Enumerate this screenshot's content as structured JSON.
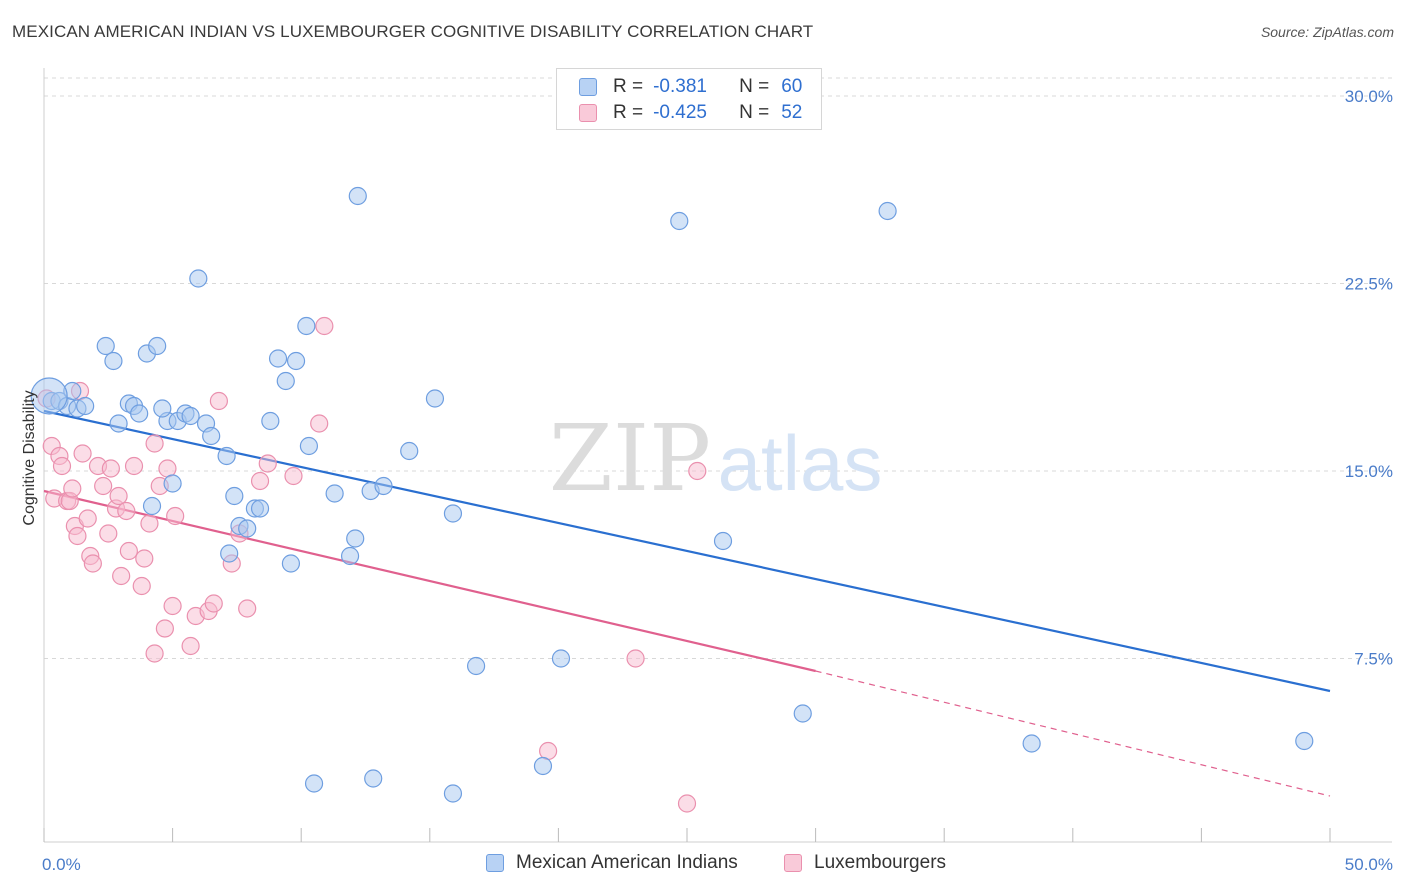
{
  "title": "MEXICAN AMERICAN INDIAN VS LUXEMBOURGER COGNITIVE DISABILITY CORRELATION CHART",
  "source": "Source: ZipAtlas.com",
  "watermark": {
    "zip": "ZIP",
    "atlas": "atlas"
  },
  "legend": {
    "blue": {
      "r_label": "R =",
      "r_value": "-0.381",
      "n_label": "N =",
      "n_value": "60"
    },
    "pink": {
      "r_label": "R =",
      "r_value": "-0.425",
      "n_label": "N =",
      "n_value": "52"
    }
  },
  "bottom_legend": {
    "blue": "Mexican American Indians",
    "pink": "Luxembourgers"
  },
  "colors": {
    "blue_fill": "#a8c8f0",
    "blue_stroke": "#6e9ee0",
    "blue_line": "#2a6fd0",
    "pink_fill": "#f7bcd0",
    "pink_stroke": "#ea90ae",
    "pink_line": "#e0608e",
    "grid": "#d8d8d8",
    "tick_text": "#4a7cc9"
  },
  "chart_data": {
    "type": "scatter",
    "title": "MEXICAN AMERICAN INDIAN VS LUXEMBOURGER COGNITIVE DISABILITY CORRELATION CHART",
    "xlabel": "",
    "ylabel": "Cognitive Disability",
    "xlim": [
      0,
      50
    ],
    "ylim": [
      0,
      30.5
    ],
    "x_tick_labels": [
      "0.0%",
      "50.0%"
    ],
    "y_ticks": [
      7.5,
      15.0,
      22.5,
      30.0
    ],
    "y_tick_labels": [
      "7.5%",
      "15.0%",
      "22.5%",
      "30.0%"
    ],
    "grid": true,
    "series": [
      {
        "name": "Mexican American Indians",
        "color": "#6e9ee0",
        "r": -0.381,
        "n": 60,
        "trend": {
          "x0": 0,
          "y0": 17.4,
          "x1": 50,
          "y1": 6.2
        },
        "points": [
          [
            0.3,
            17.8
          ],
          [
            0.6,
            17.8
          ],
          [
            0.9,
            17.6
          ],
          [
            1.1,
            18.2
          ],
          [
            1.3,
            17.5
          ],
          [
            1.6,
            17.6
          ],
          [
            2.4,
            20.0
          ],
          [
            2.7,
            19.4
          ],
          [
            2.9,
            16.9
          ],
          [
            3.3,
            17.7
          ],
          [
            3.5,
            17.6
          ],
          [
            3.7,
            17.3
          ],
          [
            4.0,
            19.7
          ],
          [
            4.2,
            13.6
          ],
          [
            4.4,
            20.0
          ],
          [
            4.8,
            17.0
          ],
          [
            5.0,
            14.5
          ],
          [
            5.2,
            17.0
          ],
          [
            5.5,
            17.3
          ],
          [
            5.7,
            17.2
          ],
          [
            6.0,
            22.7
          ],
          [
            6.3,
            16.9
          ],
          [
            6.5,
            16.4
          ],
          [
            7.1,
            15.6
          ],
          [
            7.2,
            11.7
          ],
          [
            7.4,
            14.0
          ],
          [
            7.6,
            12.8
          ],
          [
            7.9,
            12.7
          ],
          [
            8.2,
            13.5
          ],
          [
            8.4,
            13.5
          ],
          [
            8.8,
            17.0
          ],
          [
            9.1,
            19.5
          ],
          [
            9.4,
            18.6
          ],
          [
            9.6,
            11.3
          ],
          [
            9.8,
            19.4
          ],
          [
            10.2,
            20.8
          ],
          [
            10.3,
            16.0
          ],
          [
            11.3,
            14.1
          ],
          [
            11.9,
            11.6
          ],
          [
            12.1,
            12.3
          ],
          [
            12.2,
            26.0
          ],
          [
            12.7,
            14.2
          ],
          [
            12.8,
            2.7
          ],
          [
            13.2,
            14.4
          ],
          [
            14.2,
            15.8
          ],
          [
            15.2,
            17.9
          ],
          [
            15.9,
            2.1
          ],
          [
            15.9,
            13.3
          ],
          [
            16.8,
            7.2
          ],
          [
            19.4,
            3.2
          ],
          [
            20.1,
            7.5
          ],
          [
            24.7,
            25.0
          ],
          [
            26.4,
            12.2
          ],
          [
            29.5,
            5.3
          ],
          [
            32.8,
            25.4
          ],
          [
            38.4,
            4.1
          ],
          [
            49.0,
            4.2
          ],
          [
            0.2,
            18.0
          ],
          [
            10.5,
            2.5
          ],
          [
            4.6,
            17.5
          ]
        ]
      },
      {
        "name": "Luxembourgers",
        "color": "#ea90ae",
        "r": -0.425,
        "n": 52,
        "trend": {
          "x0": 0,
          "y0": 14.2,
          "x1": 30.0,
          "y1": 7.0,
          "dash_x1": 50,
          "dash_y1": 2.0
        },
        "points": [
          [
            0.1,
            17.9
          ],
          [
            0.3,
            16.0
          ],
          [
            0.4,
            13.9
          ],
          [
            0.6,
            15.6
          ],
          [
            0.7,
            15.2
          ],
          [
            0.9,
            13.8
          ],
          [
            1.0,
            13.8
          ],
          [
            1.1,
            14.3
          ],
          [
            1.2,
            12.8
          ],
          [
            1.3,
            12.4
          ],
          [
            1.4,
            18.2
          ],
          [
            1.5,
            15.7
          ],
          [
            1.7,
            13.1
          ],
          [
            1.8,
            11.6
          ],
          [
            1.9,
            11.3
          ],
          [
            2.1,
            15.2
          ],
          [
            2.3,
            14.4
          ],
          [
            2.5,
            12.5
          ],
          [
            2.6,
            15.1
          ],
          [
            2.8,
            13.5
          ],
          [
            2.9,
            14.0
          ],
          [
            3.0,
            10.8
          ],
          [
            3.2,
            13.4
          ],
          [
            3.3,
            11.8
          ],
          [
            3.5,
            15.2
          ],
          [
            3.8,
            10.4
          ],
          [
            3.9,
            11.5
          ],
          [
            4.1,
            12.9
          ],
          [
            4.3,
            16.1
          ],
          [
            4.3,
            7.7
          ],
          [
            4.5,
            14.4
          ],
          [
            4.7,
            8.7
          ],
          [
            4.8,
            15.1
          ],
          [
            5.0,
            9.6
          ],
          [
            5.1,
            13.2
          ],
          [
            5.7,
            8.0
          ],
          [
            5.9,
            9.2
          ],
          [
            6.4,
            9.4
          ],
          [
            6.6,
            9.7
          ],
          [
            6.8,
            17.8
          ],
          [
            7.3,
            11.3
          ],
          [
            7.6,
            12.5
          ],
          [
            7.9,
            9.5
          ],
          [
            8.4,
            14.6
          ],
          [
            8.7,
            15.3
          ],
          [
            9.7,
            14.8
          ],
          [
            10.7,
            16.9
          ],
          [
            10.9,
            20.8
          ],
          [
            19.6,
            3.8
          ],
          [
            23.0,
            7.5
          ],
          [
            25.4,
            15.0
          ],
          [
            25.0,
            1.7
          ]
        ]
      }
    ]
  }
}
